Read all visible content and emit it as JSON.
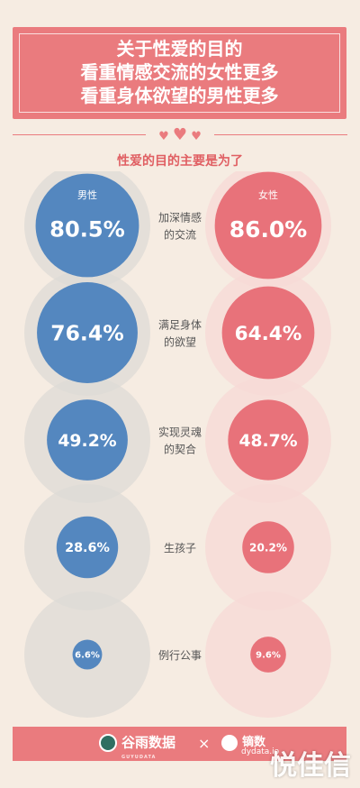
{
  "title_lines": [
    "关于性爱的目的",
    "看重情感交流的女性更多",
    "看重身体欲望的男性更多"
  ],
  "subtitle": "性爱的目的主要是为了",
  "hearts": [
    "♥",
    "♥",
    "♥"
  ],
  "colors": {
    "male": "#5487bf",
    "female": "#e8727a",
    "accent": "#ea7b7e",
    "background": "#f6ece2"
  },
  "chart_data": {
    "type": "bubble",
    "title": "性爱的目的主要是为了",
    "series": [
      {
        "name": "男性",
        "values": [
          80.5,
          76.4,
          49.2,
          28.6,
          6.6
        ]
      },
      {
        "name": "女性",
        "values": [
          86.0,
          64.4,
          48.7,
          20.2,
          9.6
        ]
      }
    ],
    "categories": [
      [
        "加深情感",
        "的交流"
      ],
      [
        "满足身体",
        "的欲望"
      ],
      [
        "实现灵魂",
        "的契合"
      ],
      [
        "生孩子"
      ],
      [
        "例行公事"
      ]
    ],
    "value_labels": {
      "male": [
        "80.5%",
        "76.4%",
        "49.2%",
        "28.6%",
        "6.6%"
      ],
      "female": [
        "86.0%",
        "64.4%",
        "48.7%",
        "20.2%",
        "9.6%"
      ]
    }
  },
  "footer": {
    "logo_left": "谷雨数据",
    "logo_left_sub": "GUYUDATA",
    "cross": "×",
    "logo_right": "镝数",
    "logo_right_site": "dydata.io"
  },
  "watermark": "悦佳信"
}
